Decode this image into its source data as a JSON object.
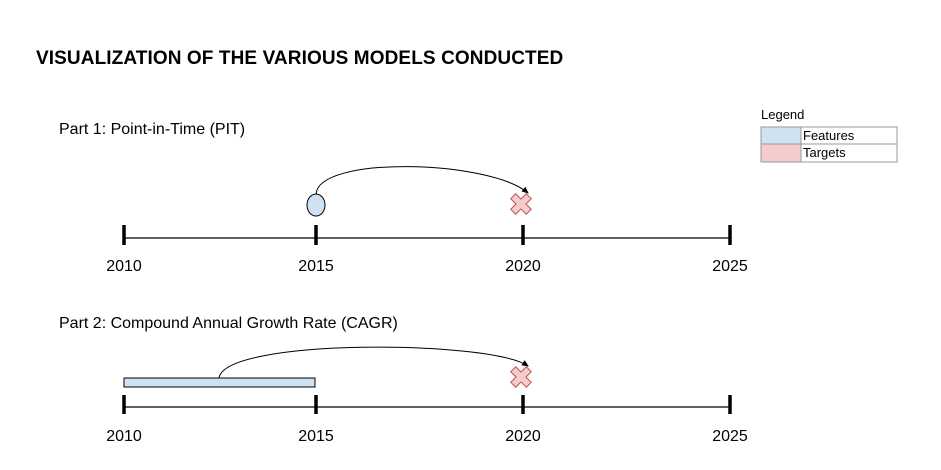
{
  "title": "VISUALIZATION OF THE VARIOUS MODELS CONDUCTED",
  "legend": {
    "title": "Legend",
    "items": [
      {
        "label": "Features",
        "color": "#cfe2f3"
      },
      {
        "label": "Targets",
        "color": "#f4cccc"
      }
    ]
  },
  "timelines": [
    {
      "label": "Part 1: Point-in-Time (PIT)",
      "ticks": [
        "2010",
        "2015",
        "2020",
        "2025"
      ],
      "features": {
        "type": "point",
        "year": 2015
      },
      "target": {
        "year": 2020
      }
    },
    {
      "label": "Part 2: Compound Annual Growth Rate (CAGR)",
      "ticks": [
        "2010",
        "2015",
        "2020",
        "2025"
      ],
      "features": {
        "type": "range",
        "from": 2010,
        "to": 2015
      },
      "target": {
        "year": 2020
      }
    }
  ],
  "colors": {
    "features": "#cfe2f3",
    "targets": "#f4cccc",
    "line": "#000000"
  }
}
